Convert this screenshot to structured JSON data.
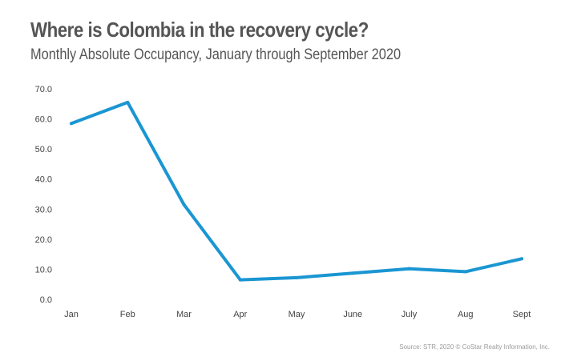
{
  "chart_data": {
    "type": "line",
    "title": "Where is Colombia in the recovery cycle?",
    "subtitle": "Monthly Absolute Occupancy, January through September 2020",
    "categories": [
      "Jan",
      "Feb",
      "Mar",
      "Apr",
      "May",
      "June",
      "July",
      "Aug",
      "Sept"
    ],
    "series": [
      {
        "values": [
          58.5,
          65.5,
          31.5,
          6.5,
          7.2,
          8.7,
          10.2,
          9.2,
          13.5
        ],
        "color": "#1a96d2"
      }
    ],
    "ylim": [
      0,
      70
    ],
    "yticks": [
      "0.0",
      "10.0",
      "20.0",
      "30.0",
      "40.0",
      "50.0",
      "60.0",
      "70.0"
    ],
    "grid": false,
    "source": "Source: STR, 2020 © CoStar Realty Information, Inc."
  }
}
